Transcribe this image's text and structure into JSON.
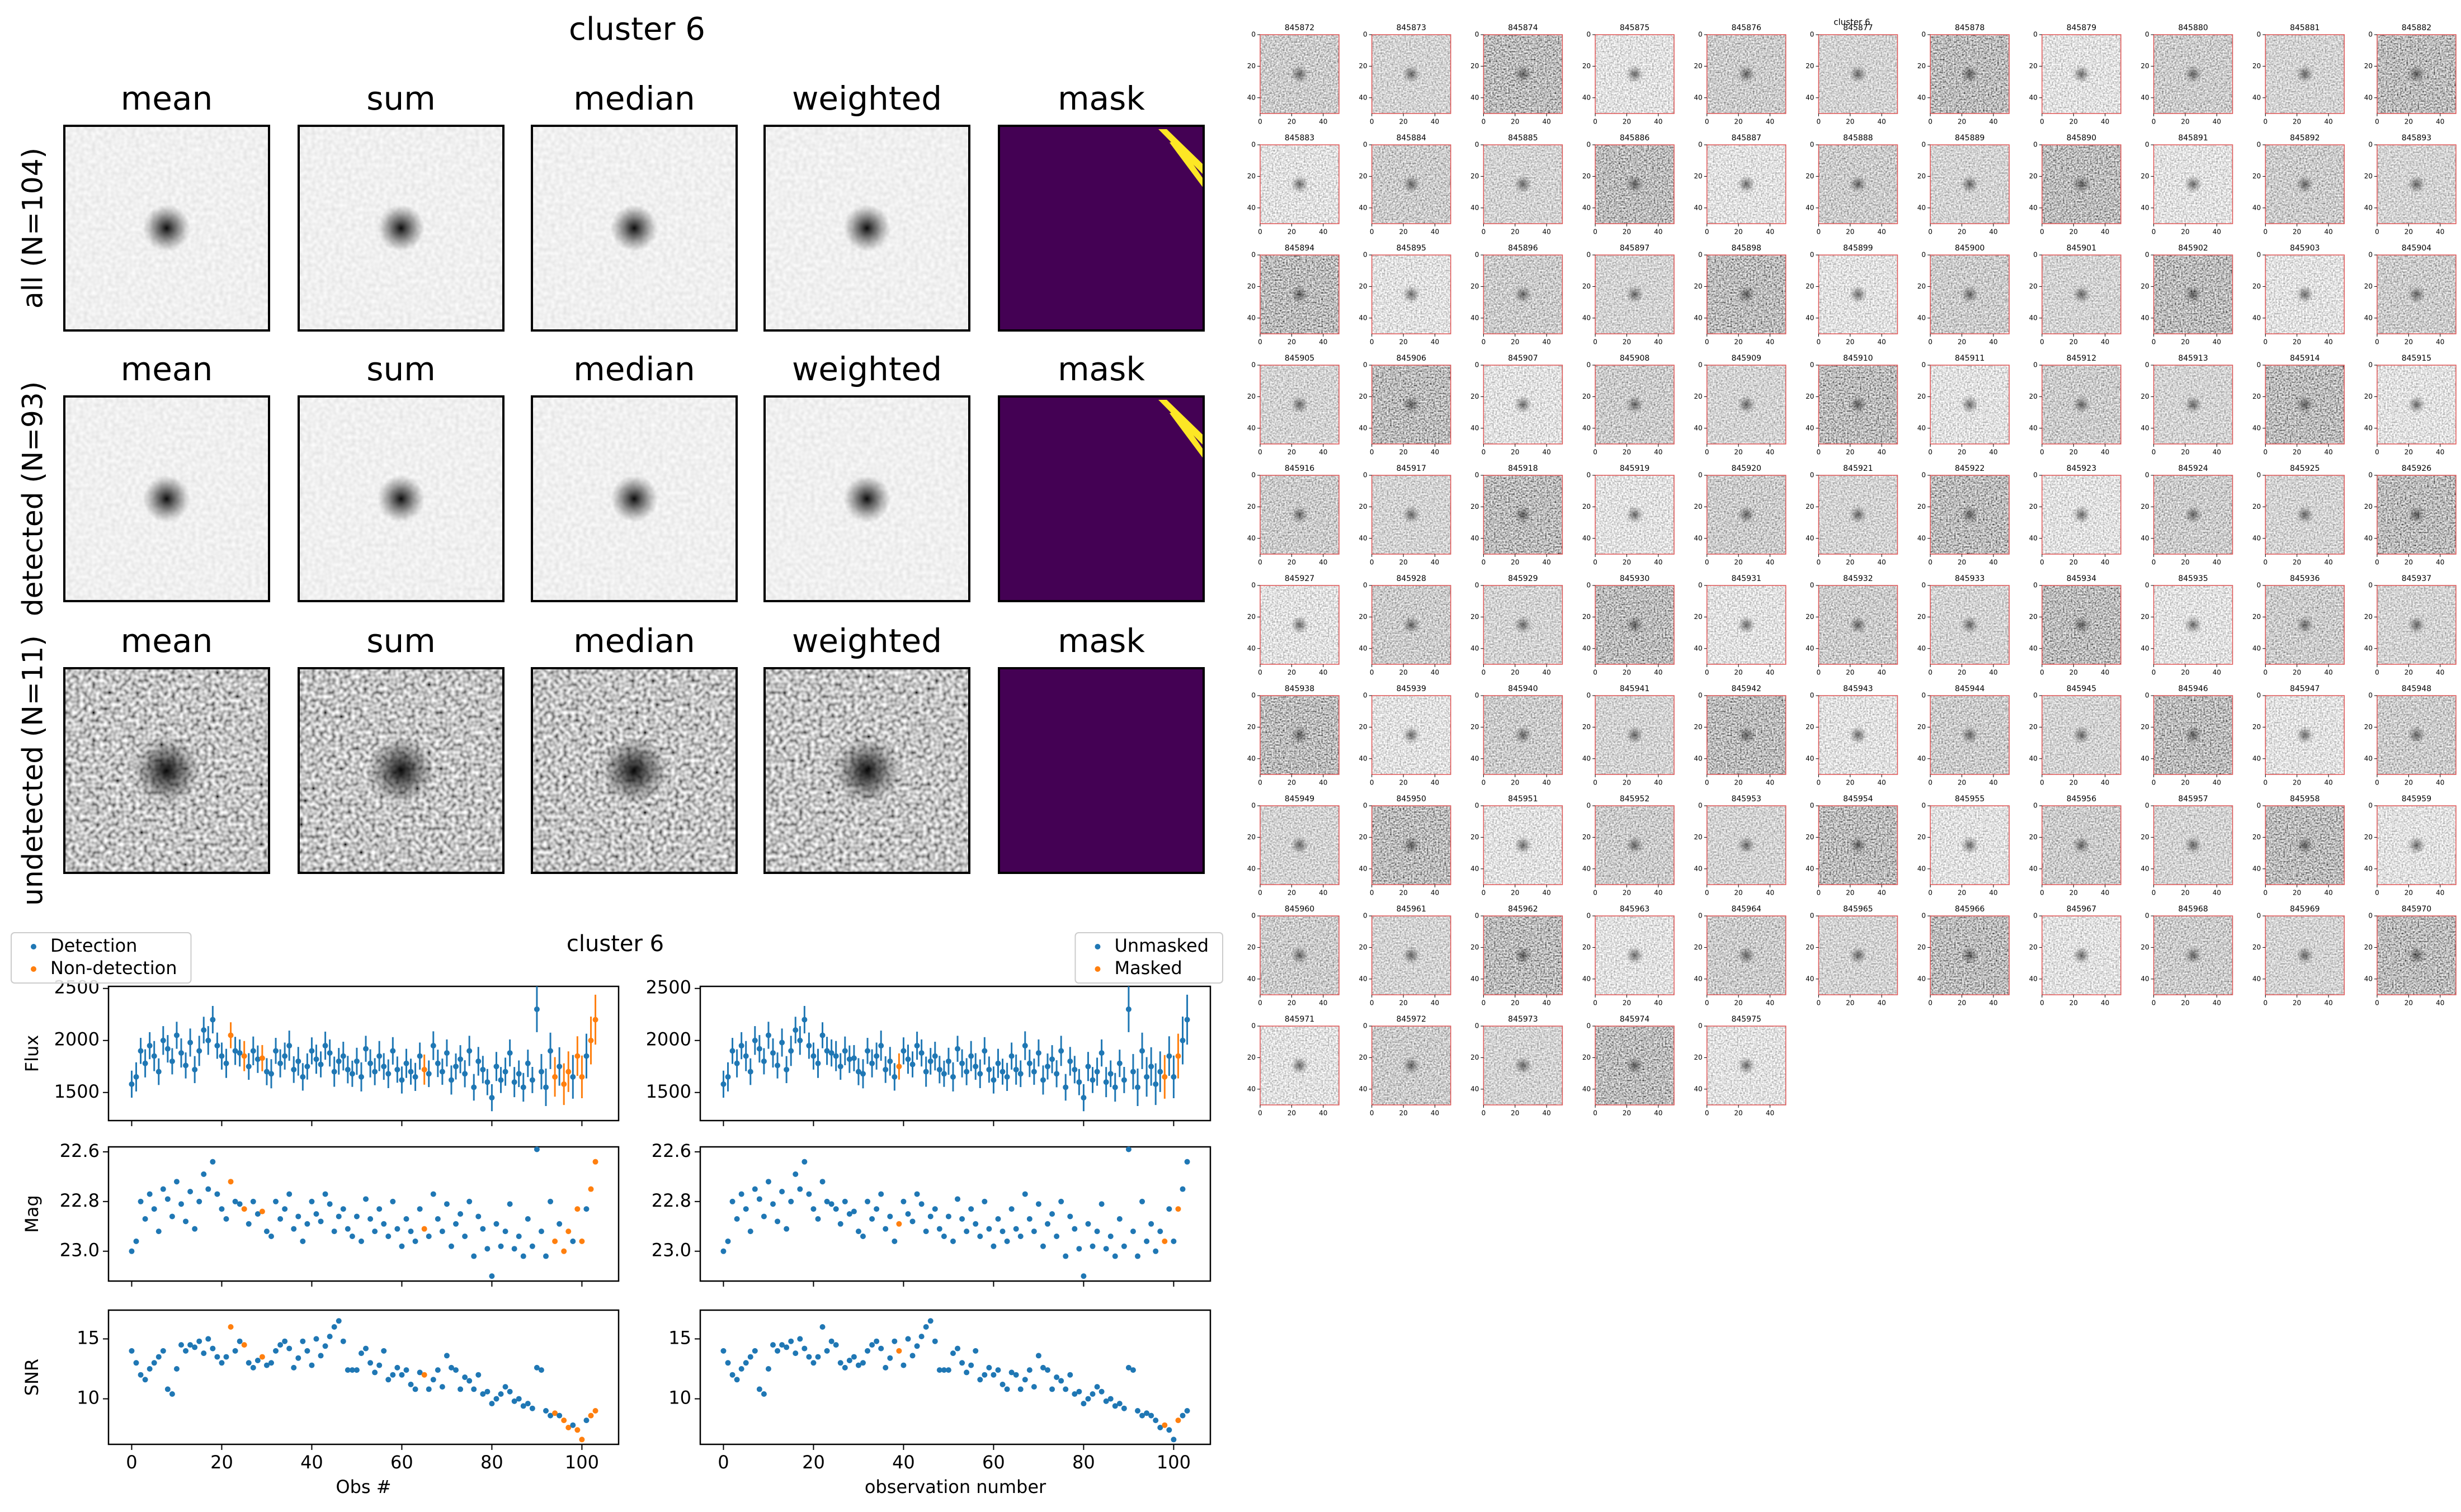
{
  "stack_title": "cluster 6",
  "stack": {
    "columns": [
      "mean",
      "sum",
      "median",
      "weighted",
      "mask"
    ],
    "rows": [
      "all (N=104)",
      "detected (N=93)",
      "undetected (N=11)"
    ]
  },
  "chart_data": {
    "type": "scatter",
    "title": "cluster 6",
    "x": [
      0,
      1,
      2,
      3,
      4,
      5,
      6,
      7,
      8,
      9,
      10,
      11,
      12,
      13,
      14,
      15,
      16,
      17,
      18,
      19,
      20,
      21,
      22,
      23,
      24,
      25,
      26,
      27,
      28,
      29,
      30,
      31,
      32,
      33,
      34,
      35,
      36,
      37,
      38,
      39,
      40,
      41,
      42,
      43,
      44,
      45,
      46,
      47,
      48,
      49,
      50,
      51,
      52,
      53,
      54,
      55,
      56,
      57,
      58,
      59,
      60,
      61,
      62,
      63,
      64,
      65,
      66,
      67,
      68,
      69,
      70,
      71,
      72,
      73,
      74,
      75,
      76,
      77,
      78,
      79,
      80,
      81,
      82,
      83,
      84,
      85,
      86,
      87,
      88,
      89,
      90,
      91,
      92,
      93,
      94,
      95,
      96,
      97,
      98,
      99,
      100,
      101,
      102,
      103
    ],
    "xlim": [
      -5.15,
      108.15
    ],
    "xticks": [
      0,
      20,
      40,
      60,
      80,
      100
    ],
    "series": [
      {
        "name": "Flux",
        "ylim": [
          1230,
          2520
        ],
        "yticks": [
          1500,
          2000,
          2500
        ],
        "values": [
          1580,
          1650,
          1900,
          1780,
          1950,
          1850,
          1700,
          2000,
          1920,
          1800,
          2050,
          1880,
          1760,
          1980,
          1720,
          1900,
          2100,
          2000,
          2200,
          1950,
          1850,
          1780,
          2050,
          1900,
          1880,
          1850,
          1750,
          1900,
          1820,
          1830,
          1700,
          1680,
          1900,
          1780,
          1850,
          1950,
          1720,
          1800,
          1650,
          1750,
          1900,
          1820,
          1770,
          1950,
          1880,
          1700,
          1800,
          1850,
          1720,
          1680,
          1800,
          1650,
          1920,
          1780,
          1700,
          1850,
          1750,
          1680,
          1900,
          1720,
          1620,
          1780,
          1700,
          1650,
          1850,
          1720,
          1680,
          1950,
          1780,
          1700,
          1880,
          1620,
          1750,
          1820,
          1680,
          1900,
          1550,
          1800,
          1720,
          1600,
          1450,
          1750,
          1620,
          1700,
          1880,
          1600,
          1680,
          1550,
          1780,
          1620,
          2300,
          1700,
          1550,
          1900,
          1650,
          1750,
          1580,
          1700,
          1650,
          1850,
          1650,
          1850,
          2000,
          2200
        ],
        "errors": [
          130,
          140,
          125,
          135,
          130,
          145,
          128,
          138,
          132,
          126,
          130,
          140,
          125,
          135,
          130,
          145,
          128,
          138,
          132,
          126,
          130,
          140,
          125,
          135,
          130,
          145,
          128,
          138,
          132,
          126,
          130,
          140,
          125,
          135,
          130,
          145,
          128,
          138,
          132,
          126,
          130,
          140,
          125,
          135,
          130,
          145,
          128,
          138,
          132,
          126,
          130,
          140,
          125,
          135,
          130,
          145,
          128,
          138,
          132,
          126,
          130,
          140,
          125,
          135,
          130,
          145,
          128,
          138,
          132,
          126,
          130,
          140,
          125,
          135,
          130,
          145,
          128,
          138,
          132,
          126,
          130,
          140,
          125,
          135,
          130,
          145,
          128,
          138,
          132,
          126,
          220,
          170,
          180,
          175,
          190,
          185,
          200,
          195,
          210,
          190,
          205,
          215,
          230,
          240
        ]
      },
      {
        "name": "Mag",
        "ylim": [
          23.12,
          22.58
        ],
        "yticks": [
          22.6,
          22.8,
          {
            "value": 23,
            "label": "23.0"
          }
        ],
        "values": [
          23.0,
          22.96,
          22.8,
          22.87,
          22.77,
          22.83,
          22.92,
          22.75,
          22.79,
          22.86,
          22.72,
          22.81,
          22.88,
          22.76,
          22.91,
          22.8,
          22.69,
          22.75,
          22.64,
          22.77,
          22.83,
          22.87,
          22.72,
          22.8,
          22.81,
          22.83,
          22.89,
          22.8,
          22.85,
          22.84,
          22.92,
          22.94,
          22.8,
          22.87,
          22.83,
          22.77,
          22.91,
          22.86,
          22.96,
          22.89,
          22.8,
          22.85,
          22.88,
          22.77,
          22.81,
          22.92,
          22.86,
          22.83,
          22.91,
          22.94,
          22.86,
          22.96,
          22.79,
          22.87,
          22.92,
          22.83,
          22.89,
          22.94,
          22.8,
          22.91,
          22.98,
          22.87,
          22.92,
          22.96,
          22.83,
          22.91,
          22.94,
          22.77,
          22.87,
          22.92,
          22.81,
          22.98,
          22.89,
          22.85,
          22.94,
          22.8,
          23.02,
          22.86,
          22.91,
          22.99,
          23.1,
          22.89,
          22.98,
          22.92,
          22.81,
          22.99,
          22.94,
          23.02,
          22.87,
          22.98,
          22.59,
          22.92,
          23.02,
          22.8,
          22.96,
          22.89,
          23.0,
          22.92,
          22.96,
          22.83,
          22.96,
          22.83,
          22.75,
          22.64
        ]
      },
      {
        "name": "SNR",
        "ylim": [
          6.2,
          17.4
        ],
        "yticks": [
          10,
          15
        ],
        "values": [
          14,
          13,
          12,
          11.6,
          12.5,
          13,
          13.5,
          14,
          10.8,
          10.4,
          12.5,
          14.5,
          14,
          14.5,
          14.3,
          14.8,
          13.8,
          15,
          14.2,
          13.5,
          13,
          13.5,
          16,
          14,
          14.8,
          14.5,
          13,
          12.6,
          13.2,
          13.5,
          12.8,
          13,
          14,
          14.5,
          14.8,
          14.2,
          12.6,
          13.4,
          14.8,
          14,
          12.8,
          15,
          13.6,
          14.4,
          15.2,
          16,
          16.5,
          14.8,
          12.4,
          12.4,
          12.4,
          13.8,
          14.2,
          13,
          12.2,
          12.8,
          14,
          11.6,
          12,
          12.6,
          12,
          12.4,
          11.2,
          10.8,
          12.2,
          12,
          10.8,
          11.6,
          12.4,
          11,
          13.6,
          12.6,
          12.4,
          10.8,
          11.8,
          11.5,
          10.8,
          12,
          10.4,
          10.6,
          9.6,
          10,
          10.4,
          11,
          10.6,
          9.8,
          10,
          9.4,
          9.6,
          9.2,
          12.6,
          12.4,
          9,
          8.6,
          8.8,
          8.6,
          8.2,
          7.6,
          7.8,
          7.4,
          6.6,
          8.2,
          8.6,
          9
        ]
      }
    ],
    "groupings": [
      {
        "xlabel": "Obs #",
        "legend_corner": "upper left",
        "legend": [
          {
            "name": "Detection",
            "color": "#1f77b4"
          },
          {
            "name": "Non-detection",
            "color": "#ff7f0e"
          }
        ],
        "flags": [
          false,
          false,
          false,
          false,
          false,
          false,
          false,
          false,
          false,
          false,
          false,
          false,
          false,
          false,
          false,
          false,
          false,
          false,
          false,
          false,
          false,
          false,
          true,
          false,
          false,
          true,
          false,
          false,
          false,
          true,
          false,
          false,
          false,
          false,
          false,
          false,
          false,
          false,
          false,
          false,
          false,
          false,
          false,
          false,
          false,
          false,
          false,
          false,
          false,
          false,
          false,
          false,
          false,
          false,
          false,
          false,
          false,
          false,
          false,
          false,
          false,
          false,
          false,
          false,
          false,
          true,
          false,
          false,
          false,
          false,
          false,
          false,
          false,
          false,
          false,
          false,
          false,
          false,
          false,
          false,
          false,
          false,
          false,
          false,
          false,
          false,
          false,
          false,
          false,
          false,
          false,
          false,
          false,
          false,
          true,
          false,
          true,
          true,
          false,
          true,
          true,
          false,
          true,
          true
        ]
      },
      {
        "xlabel": "observation number",
        "legend_corner": "upper right",
        "legend": [
          {
            "name": "Unmasked",
            "color": "#1f77b4"
          },
          {
            "name": "Masked",
            "color": "#ff7f0e"
          }
        ],
        "flags": [
          false,
          false,
          false,
          false,
          false,
          false,
          false,
          false,
          false,
          false,
          false,
          false,
          false,
          false,
          false,
          false,
          false,
          false,
          false,
          false,
          false,
          false,
          false,
          false,
          false,
          false,
          false,
          false,
          false,
          false,
          false,
          false,
          false,
          false,
          false,
          false,
          false,
          false,
          false,
          true,
          false,
          false,
          false,
          false,
          false,
          false,
          false,
          false,
          false,
          false,
          false,
          false,
          false,
          false,
          false,
          false,
          false,
          false,
          false,
          false,
          false,
          false,
          false,
          false,
          false,
          false,
          false,
          false,
          false,
          false,
          false,
          false,
          false,
          false,
          false,
          false,
          false,
          false,
          false,
          false,
          false,
          false,
          false,
          false,
          false,
          false,
          false,
          false,
          false,
          false,
          false,
          false,
          false,
          false,
          false,
          false,
          false,
          false,
          true,
          false,
          false,
          true,
          false,
          false
        ]
      }
    ]
  },
  "thumbnails": {
    "title": "cluster 6",
    "xlim": [
      0,
      50
    ],
    "ylim": [
      0,
      50
    ],
    "ticks": [
      0,
      20,
      40
    ],
    "labels": [
      "845872",
      "845873",
      "845874",
      "845875",
      "845876",
      "845877",
      "845878",
      "845879",
      "845880",
      "845881",
      "845882",
      "845883",
      "845884",
      "845885",
      "845886",
      "845887",
      "845888",
      "845889",
      "845890",
      "845891",
      "845892",
      "845893",
      "845894",
      "845895",
      "845896",
      "845897",
      "845898",
      "845899",
      "845900",
      "845901",
      "845902",
      "845903",
      "845904",
      "845905",
      "845906",
      "845907",
      "845908",
      "845909",
      "845910",
      "845911",
      "845912",
      "845913",
      "845914",
      "845915",
      "845916",
      "845917",
      "845918",
      "845919",
      "845920",
      "845921",
      "845922",
      "845923",
      "845924",
      "845925",
      "845926",
      "845927",
      "845928",
      "845929",
      "845930",
      "845931",
      "845932",
      "845933",
      "845934",
      "845935",
      "845936",
      "845937",
      "845938",
      "845939",
      "845940",
      "845941",
      "845942",
      "845943",
      "845944",
      "845945",
      "845946",
      "845947",
      "845948",
      "845949",
      "845950",
      "845951",
      "845952",
      "845953",
      "845954",
      "845955",
      "845956",
      "845957",
      "845958",
      "845959",
      "845960",
      "845961",
      "845962",
      "845963",
      "845964",
      "845965",
      "845966",
      "845967",
      "845968",
      "845969",
      "845970",
      "845971",
      "845972",
      "845973",
      "845974",
      "845975"
    ]
  }
}
